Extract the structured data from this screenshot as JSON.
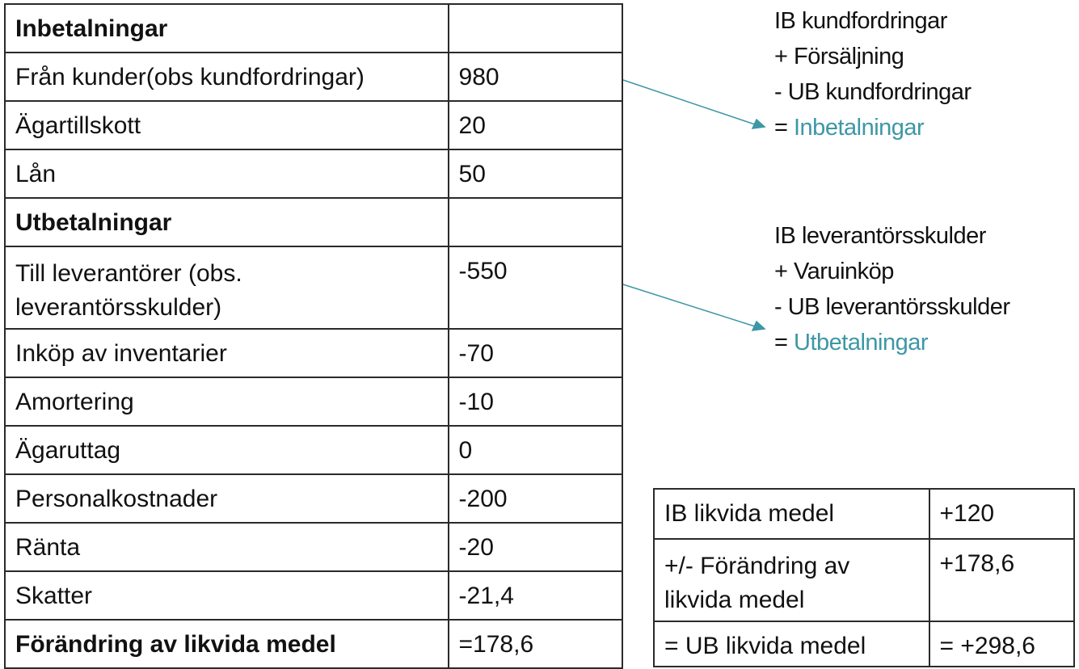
{
  "cashflow_table": {
    "rows": [
      {
        "label": "Inbetalningar",
        "value": "",
        "bold": true
      },
      {
        "label": "Från kunder(obs kundfordringar)",
        "value": "980",
        "bold": false
      },
      {
        "label": "Ägartillskott",
        "value": "20",
        "bold": false
      },
      {
        "label": "Lån",
        "value": "50",
        "bold": false
      },
      {
        "label": "Utbetalningar",
        "value": "",
        "bold": true
      },
      {
        "label": "Till leverantörer (obs. leverantörsskulder)",
        "value": "-550",
        "bold": false
      },
      {
        "label": "Inköp av inventarier",
        "value": "-70",
        "bold": false
      },
      {
        "label": "Amortering",
        "value": "-10",
        "bold": false
      },
      {
        "label": "Ägaruttag",
        "value": "0",
        "bold": false
      },
      {
        "label": "Personalkostnader",
        "value": "-200",
        "bold": false
      },
      {
        "label": "Ränta",
        "value": "-20",
        "bold": false
      },
      {
        "label": "Skatter",
        "value": "-21,4",
        "bold": false
      },
      {
        "label": "Förändring av likvida medel",
        "value": "=178,6",
        "bold": true
      }
    ]
  },
  "note_customers": {
    "lines": [
      "IB kundfordringar",
      "+ Försäljning",
      "- UB kundfordringar"
    ],
    "result_prefix": "= ",
    "result": "Inbetalningar"
  },
  "note_suppliers": {
    "lines": [
      "IB leverantörsskulder",
      "+ Varuinköp",
      "- UB leverantörsskulder"
    ],
    "result_prefix": "= ",
    "result": "Utbetalningar"
  },
  "summary_table": {
    "rows": [
      {
        "label": "IB likvida medel",
        "value": "+120"
      },
      {
        "label": "+/- Förändring av likvida medel",
        "value": "+178,6"
      },
      {
        "label": "= UB likvida medel",
        "value": "= +298,6"
      }
    ]
  },
  "colors": {
    "accent": "#3d97a5",
    "border": "#2a2a2a",
    "text": "#111111"
  }
}
